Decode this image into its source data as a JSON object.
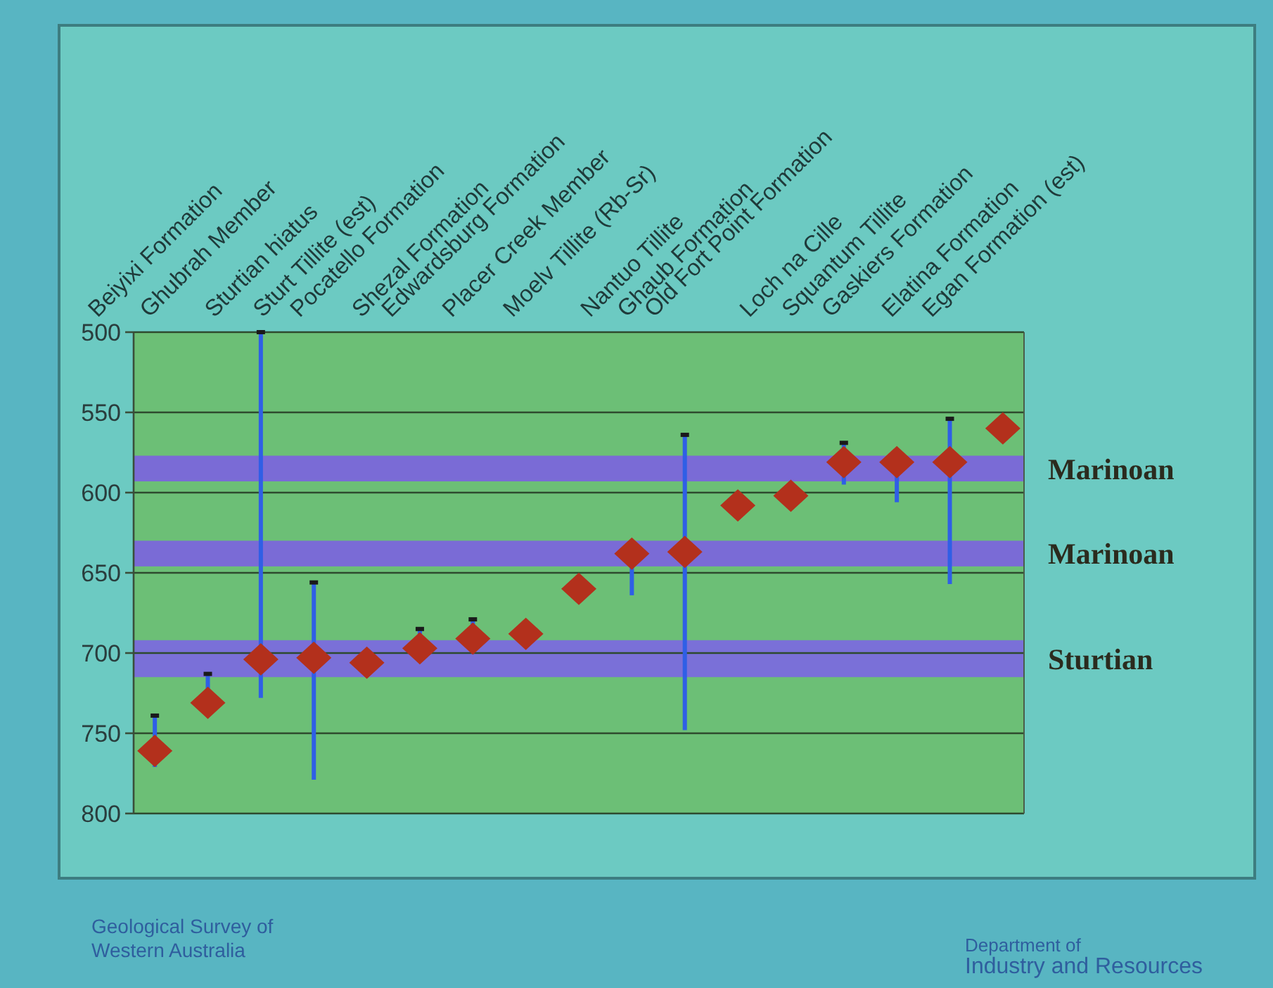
{
  "chart_data": {
    "type": "scatter",
    "categories": [
      "Beiyixi Formation",
      "Ghubrah Member",
      "Sturtian hiatus",
      "Sturt Tillite (est)",
      "Pocatello Formation",
      "Shezal Formation",
      "Edwardsburg Formation",
      "Placer Creek Member",
      "Moelv Tillite (Rb-Sr)",
      "Nantuo Tillite",
      "Ghaub Formation",
      "Old Fort Point Formation",
      "Loch na Cille",
      "Squantum Tillite",
      "Gaskiers Formation",
      "Elatina Formation",
      "Egan Formation (est)"
    ],
    "values": [
      761,
      731,
      704,
      703,
      706,
      697,
      691,
      688,
      660,
      638,
      637,
      608,
      602,
      581,
      581,
      581,
      560
    ],
    "errors": [
      [
        739,
        771
      ],
      [
        713,
        731
      ],
      [
        500,
        728
      ],
      [
        656,
        779
      ],
      null,
      [
        685,
        697
      ],
      [
        679,
        691
      ],
      null,
      null,
      [
        638,
        664
      ],
      [
        564,
        748
      ],
      null,
      null,
      [
        569,
        595
      ],
      [
        581,
        606
      ],
      [
        554,
        657
      ],
      null
    ],
    "color": "#b3301c",
    "marker": "diamond",
    "ylim": [
      800,
      500
    ],
    "yticks": [
      500,
      550,
      600,
      650,
      700,
      750,
      800
    ],
    "grid": "y",
    "bands": [
      {
        "axis": "y",
        "from": 577,
        "to": 593,
        "label": "Marinoan",
        "color": "#7a6bd6"
      },
      {
        "axis": "y",
        "from": 630,
        "to": 646,
        "label": "Marinoan",
        "color": "#7a6bd6"
      },
      {
        "axis": "y",
        "from": 692,
        "to": 715,
        "label": "Sturtian",
        "color": "#7a70d8"
      }
    ],
    "annotations": [
      "Geological Survey of\nWestern Australia",
      "Department of\nIndustry and Resources"
    ]
  }
}
